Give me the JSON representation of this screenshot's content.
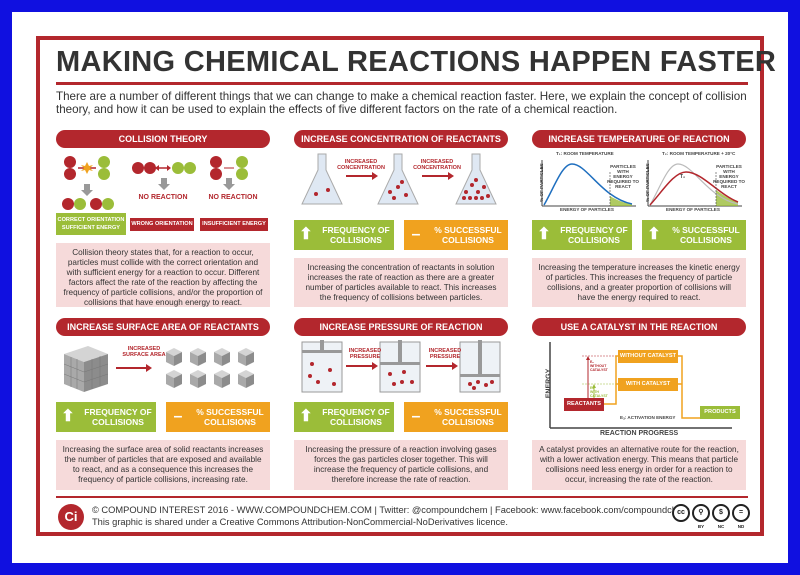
{
  "title": "MAKING CHEMICAL REACTIONS HAPPEN FASTER",
  "intro": "There are a number of different things that we can change to make a chemical reaction faster. Here, we explain the concept of collision theory, and how it can be used to explain the effects of five different factors on the rate of a chemical reaction.",
  "collision": {
    "header": "COLLISION THEORY",
    "no_reaction_1": "NO REACTION",
    "no_reaction_2": "NO REACTION",
    "tag_correct": "CORRECT ORIENTATION\nSUFFICIENT ENERGY",
    "tag_wrong": "WRONG ORIENTATION",
    "tag_insufficient": "INSUFFICIENT ENERGY",
    "description": "Collision theory states that, for a reaction to occur, particles must collide with the correct orientation and with sufficient energy for a reaction to occur. Different factors affect the rate of the reaction by affecting the frequency of particle collisions, and/or the proportion of collisions that have enough energy to react."
  },
  "concentration": {
    "header": "INCREASE CONCENTRATION OF REACTANTS",
    "arrow_label_1": "INCREASED\nCONCENTRATION",
    "arrow_label_2": "INCREASED\nCONCENTRATION",
    "pill_green": "FREQUENCY OF\nCOLLISIONS",
    "pill_orange": "% SUCCESSFUL\nCOLLISIONS",
    "description": "Increasing the concentration of reactants in solution increases the rate of reaction as there are a greater number of particles available to react. This increases the frequency of collisions between particles."
  },
  "temperature": {
    "header": "INCREASE TEMPERATURE OF REACTION",
    "graph1_title": "T₁: ROOM TEMPERATURE",
    "graph2_title": "T₂: ROOM TEMPERATURE + 20°C",
    "graph_note_1": "PARTICLES\nWITH ENERGY\nREQUIRED TO\nREACT",
    "graph_note_2": "PARTICLES\nWITH ENERGY\nREQUIRED TO\nREACT",
    "ylabel": "% OF PARTICLES",
    "xlabel": "ENERGY OF PARTICLES",
    "t1_label": "T₁",
    "t2_label": "T₂",
    "pill_green": "FREQUENCY OF\nCOLLISIONS",
    "pill_orange": "% SUCCESSFUL\nCOLLISIONS",
    "description": "Increasing the temperature increases the kinetic energy of particles. This increases the frequency of particle collisions, and a greater proportion of collisions will have the energy required to react."
  },
  "surface": {
    "header": "INCREASE SURFACE AREA OF REACTANTS",
    "arrow_label": "INCREASED\nSURFACE AREA",
    "pill_green": "FREQUENCY OF\nCOLLISIONS",
    "pill_orange": "% SUCCESSFUL\nCOLLISIONS",
    "description": "Increasing the surface area of solid reactants increases the number of particles that are exposed and available to react, and as a consequence this increases the frequency of particle collisions, increasing rate."
  },
  "pressure": {
    "header": "INCREASE PRESSURE OF REACTION",
    "arrow_label_1": "INCREASED\nPRESSURE",
    "arrow_label_2": "INCREASED\nPRESSURE",
    "pill_green": "FREQUENCY OF\nCOLLISIONS",
    "pill_orange": "% SUCCESSFUL\nCOLLISIONS",
    "description": "Increasing the pressure of a reaction involving gases forces the gas particles closer together. This will increase the frequency of particle collisions, and therefore increase the rate of reaction."
  },
  "catalyst": {
    "header": "USE A CATALYST IN THE REACTION",
    "ylabel": "ENERGY",
    "xlabel": "REACTION PROGRESS",
    "without": "WITHOUT CATALYST",
    "with": "WITH CATALYST",
    "reactants": "REACTANTS",
    "products": "PRODUCTS",
    "ea_legend": "Eₐ: ACTIVATION ENERGY",
    "ea_without": "Eₐ\nWITHOUT\nCATALYST",
    "ea_with": "Eₐ\nWITH\nCATALYST",
    "description": "A catalyst provides an alternative route for the reaction, with a lower activation energy. This means that particle collisions need less energy in order for a reaction to occur, increasing the rate of the reaction."
  },
  "footer": {
    "logo": "Ci",
    "line1": "© COMPOUND INTEREST 2016 - WWW.COMPOUNDCHEM.COM | Twitter: @compoundchem | Facebook: www.facebook.com/compoundchem",
    "line2": "This graphic is shared under a Creative Commons Attribution-NonCommercial-NoDerivatives licence.",
    "cc_labels": [
      "BY",
      "NC",
      "ND"
    ]
  },
  "colors": {
    "red": "#b3272d",
    "green": "#9bbd39",
    "orange": "#f0a21f",
    "pink": "#f6dada"
  },
  "icons": {
    "up": "up-arrow-icon",
    "minus": "minus-icon"
  }
}
